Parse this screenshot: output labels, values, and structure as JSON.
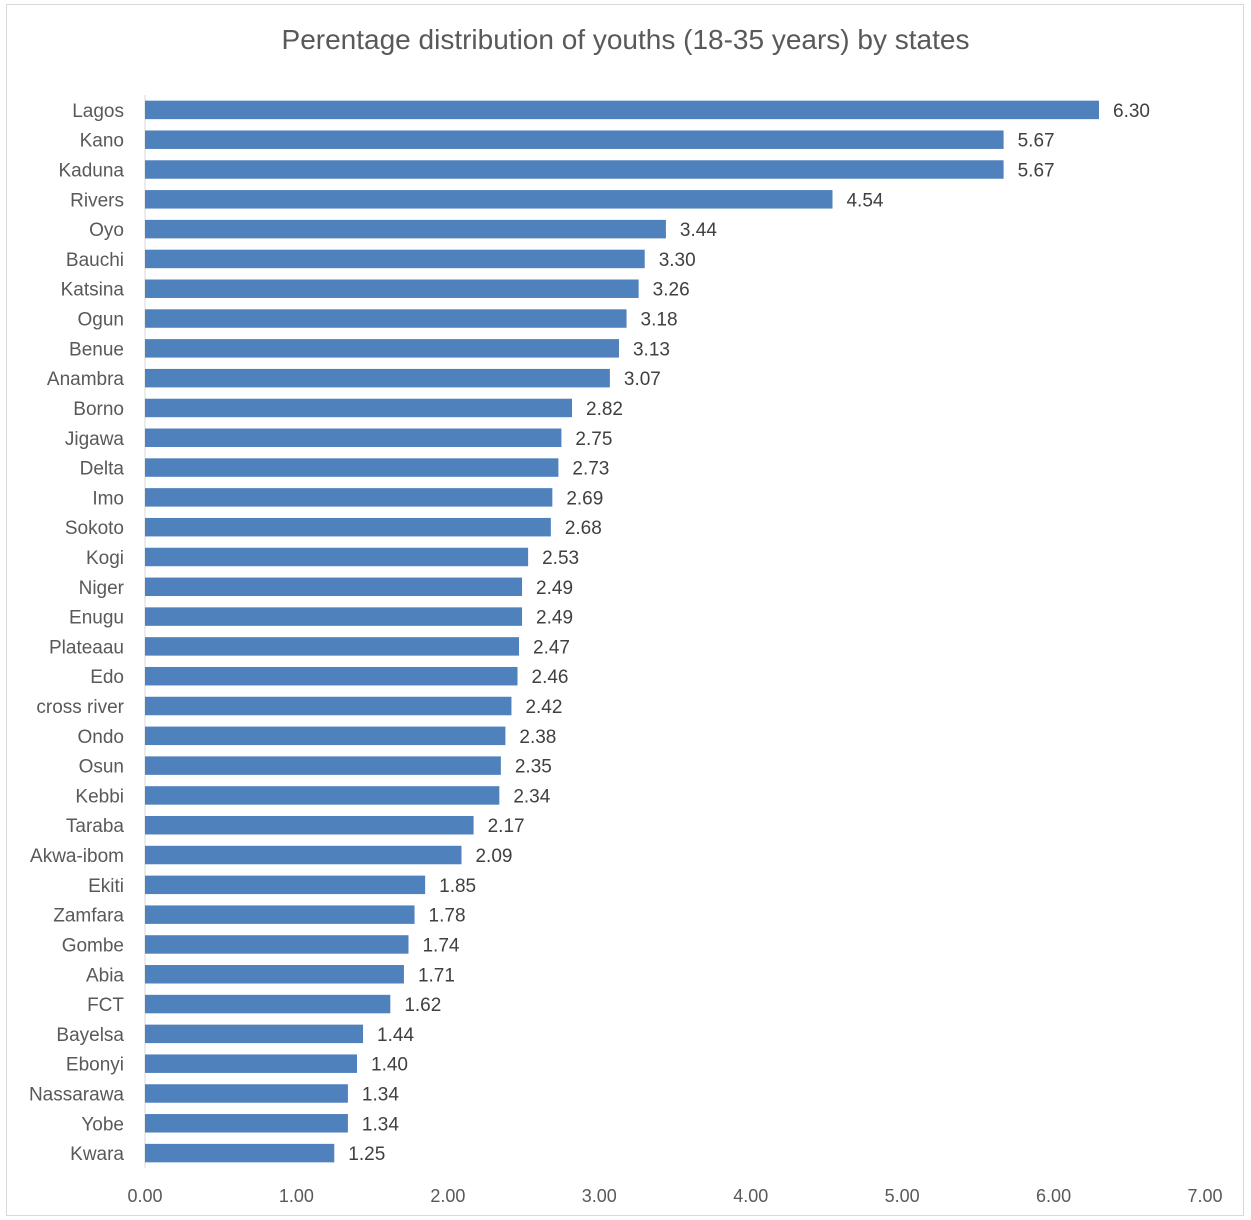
{
  "chart_data": {
    "type": "bar",
    "orientation": "horizontal",
    "title": "Perentage distribution of youths (18-35 years) by states",
    "categories": [
      "Lagos",
      "Kano",
      "Kaduna",
      "Rivers",
      "Oyo",
      "Bauchi",
      "Katsina",
      "Ogun",
      "Benue",
      "Anambra",
      "Borno",
      "Jigawa",
      "Delta",
      "Imo",
      "Sokoto",
      "Kogi",
      "Niger",
      "Enugu",
      "Plateaau",
      "Edo",
      "cross river",
      "Ondo",
      "Osun",
      "Kebbi",
      "Taraba",
      "Akwa-ibom",
      "Ekiti",
      "Zamfara",
      "Gombe",
      "Abia",
      "FCT",
      "Bayelsa",
      "Ebonyi",
      "Nassarawa",
      "Yobe",
      "Kwara"
    ],
    "values": [
      6.3,
      5.67,
      5.67,
      4.54,
      3.44,
      3.3,
      3.26,
      3.18,
      3.13,
      3.07,
      2.82,
      2.75,
      2.73,
      2.69,
      2.68,
      2.53,
      2.49,
      2.49,
      2.47,
      2.46,
      2.42,
      2.38,
      2.35,
      2.34,
      2.17,
      2.09,
      1.85,
      1.78,
      1.74,
      1.71,
      1.62,
      1.44,
      1.4,
      1.34,
      1.34,
      1.25
    ],
    "value_labels": [
      "6.30",
      "5.67",
      "5.67",
      "4.54",
      "3.44",
      "3.30",
      "3.26",
      "3.18",
      "3.13",
      "3.07",
      "2.82",
      "2.75",
      "2.73",
      "2.69",
      "2.68",
      "2.53",
      "2.49",
      "2.49",
      "2.47",
      "2.46",
      "2.42",
      "2.38",
      "2.35",
      "2.34",
      "2.17",
      "2.09",
      "1.85",
      "1.78",
      "1.74",
      "1.71",
      "1.62",
      "1.44",
      "1.40",
      "1.34",
      "1.34",
      "1.25"
    ],
    "xlim": [
      0,
      7
    ],
    "x_ticks": [
      "0.00",
      "1.00",
      "2.00",
      "3.00",
      "4.00",
      "5.00",
      "6.00",
      "7.00"
    ],
    "bar_color": "#4f81bd",
    "grid": false,
    "legend": "none"
  }
}
